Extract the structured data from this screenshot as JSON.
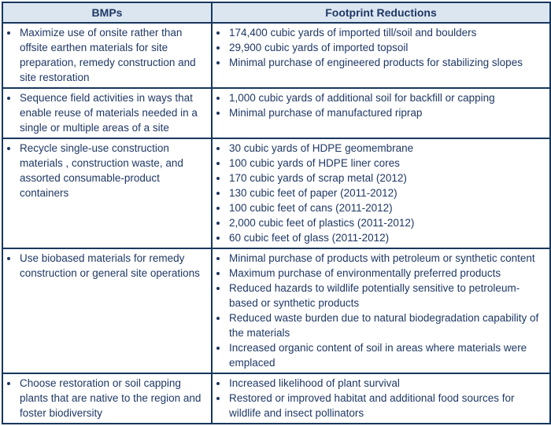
{
  "colors": {
    "border": "#17375D",
    "text": "#1F3864",
    "header_bg": "#DCE6F1",
    "page_bg": "#FFFFFF"
  },
  "table": {
    "headers": [
      "BMPs",
      "Footprint Reductions"
    ],
    "rows": [
      {
        "bmps": [
          "Maximize use of onsite rather than offsite earthen materials for site preparation, remedy construction and site restoration"
        ],
        "footprint_reductions": [
          "174,400 cubic yards of imported till/soil and boulders",
          "29,900 cubic yards of imported topsoil",
          "Minimal purchase of engineered products for stabilizing slopes"
        ]
      },
      {
        "bmps": [
          "Sequence field activities in ways that enable reuse of materials needed in a single or multiple areas of a site"
        ],
        "footprint_reductions": [
          "1,000 cubic yards of additional soil for backfill or capping",
          "Minimal purchase of manufactured riprap"
        ]
      },
      {
        "bmps": [
          "Recycle single-use construction materials , construction waste, and assorted consumable-product containers"
        ],
        "footprint_reductions": [
          "30 cubic yards of HDPE geomembrane",
          "100 cubic yards of HDPE liner cores",
          "170 cubic yards of scrap metal (2012)",
          "130 cubic feet of paper (2011-2012)",
          "100 cubic feet of cans (2011-2012)",
          "2,000 cubic feet of plastics (2011-2012)",
          "60 cubic feet of glass (2011-2012)"
        ]
      },
      {
        "bmps": [
          "Use biobased materials for remedy construction or general site operations"
        ],
        "footprint_reductions": [
          "Minimal purchase of products with petroleum or synthetic content",
          "Maximum purchase of environmentally preferred products",
          "Reduced hazards to wildlife potentially sensitive to petroleum-based or synthetic products",
          "Reduced waste burden due to natural biodegradation capability of the materials",
          "Increased organic content of soil in areas where materials were emplaced"
        ]
      },
      {
        "bmps": [
          "Choose restoration or soil capping plants that are native to the region and foster biodiversity"
        ],
        "footprint_reductions": [
          "Increased likelihood of plant survival",
          "Restored or improved habitat and additional food sources for wildlife and insect pollinators"
        ]
      }
    ]
  }
}
